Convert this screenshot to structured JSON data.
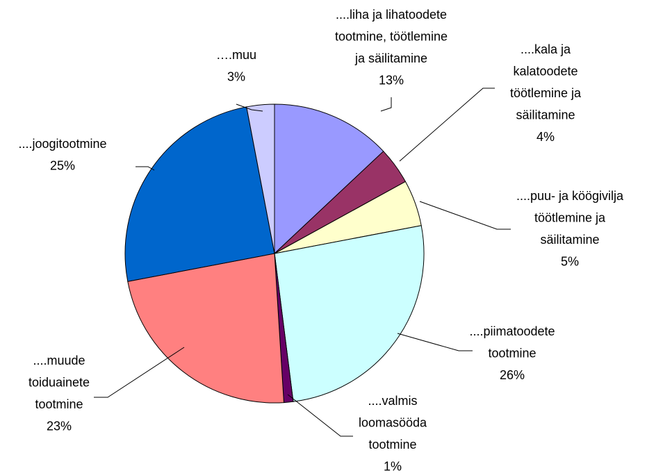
{
  "chart_data": {
    "type": "pie",
    "categories": [
      "....liha ja lihatoodete\ntootmine, töötlemine\nja säilitamine",
      "....kala ja\nkalatoodete\ntöötlemine ja\nsäilitamine",
      "....puu- ja köögivilja\ntöötlemine ja\nsäilitamine",
      "....piimatoodete\ntootmine",
      "....valmis\nloomasööda\ntootmine",
      "....muude\ntoiduainete\ntootmine",
      "....joogitootmine",
      "….muu"
    ],
    "values": [
      13,
      4,
      5,
      26,
      1,
      23,
      25,
      3
    ],
    "value_labels": [
      "13%",
      "4%",
      "5%",
      "26%",
      "1%",
      "23%",
      "25%",
      "3%"
    ],
    "colors": [
      "#9999ff",
      "#993366",
      "#ffffcc",
      "#ccffff",
      "#660066",
      "#ff8080",
      "#0066cc",
      "#ccccff"
    ]
  }
}
